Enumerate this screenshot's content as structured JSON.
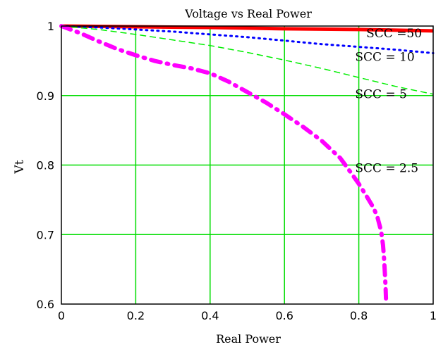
{
  "chart_data": {
    "type": "line",
    "title": "Voltage vs Real Power",
    "xlabel": "Real Power",
    "ylabel": "Vt",
    "xlim": [
      0,
      1
    ],
    "ylim": [
      0.6,
      1
    ],
    "x_ticks": [
      "0",
      "0.2",
      "0.4",
      "0.6",
      "0.8",
      "1"
    ],
    "y_ticks": [
      "0.6",
      "0.7",
      "0.8",
      "0.9",
      "1"
    ],
    "grid": true,
    "series": [
      {
        "name": "SCC =50",
        "color": "#ff0000",
        "style": "solid-thick",
        "points": [
          [
            0,
            1.0
          ],
          [
            0.2,
            0.999
          ],
          [
            0.4,
            0.998
          ],
          [
            0.6,
            0.996
          ],
          [
            0.8,
            0.995
          ],
          [
            1.0,
            0.993
          ]
        ]
      },
      {
        "name": "SCC = 10",
        "color": "#0000ff",
        "style": "dotted",
        "points": [
          [
            0,
            1.0
          ],
          [
            0.1,
            0.998
          ],
          [
            0.2,
            0.995
          ],
          [
            0.3,
            0.992
          ],
          [
            0.4,
            0.988
          ],
          [
            0.5,
            0.984
          ],
          [
            0.6,
            0.979
          ],
          [
            0.7,
            0.974
          ],
          [
            0.8,
            0.97
          ],
          [
            0.9,
            0.966
          ],
          [
            1.0,
            0.961
          ]
        ]
      },
      {
        "name": "SCC = 5",
        "color": "#00ee00",
        "style": "dashed",
        "points": [
          [
            0,
            1.0
          ],
          [
            0.1,
            0.995
          ],
          [
            0.2,
            0.988
          ],
          [
            0.3,
            0.98
          ],
          [
            0.4,
            0.972
          ],
          [
            0.5,
            0.962
          ],
          [
            0.6,
            0.951
          ],
          [
            0.7,
            0.939
          ],
          [
            0.8,
            0.926
          ],
          [
            0.9,
            0.913
          ],
          [
            1.0,
            0.902
          ]
        ]
      },
      {
        "name": "SCC = 2.5",
        "color": "#ff00ff",
        "style": "dashdot-thick",
        "points": [
          [
            0,
            1.0
          ],
          [
            0.05,
            0.99
          ],
          [
            0.1,
            0.978
          ],
          [
            0.15,
            0.967
          ],
          [
            0.2,
            0.958
          ],
          [
            0.25,
            0.95
          ],
          [
            0.3,
            0.944
          ],
          [
            0.35,
            0.939
          ],
          [
            0.4,
            0.932
          ],
          [
            0.45,
            0.92
          ],
          [
            0.5,
            0.905
          ],
          [
            0.55,
            0.89
          ],
          [
            0.6,
            0.873
          ],
          [
            0.65,
            0.855
          ],
          [
            0.7,
            0.835
          ],
          [
            0.75,
            0.81
          ],
          [
            0.78,
            0.788
          ],
          [
            0.8,
            0.773
          ],
          [
            0.82,
            0.756
          ],
          [
            0.84,
            0.738
          ],
          [
            0.85,
            0.725
          ],
          [
            0.86,
            0.705
          ],
          [
            0.865,
            0.685
          ],
          [
            0.868,
            0.665
          ],
          [
            0.87,
            0.645
          ],
          [
            0.872,
            0.625
          ],
          [
            0.873,
            0.608
          ]
        ]
      }
    ],
    "annotations": [
      {
        "text": "SCC =50",
        "x": 0.82,
        "y": 0.984
      },
      {
        "text": "SCC = 10",
        "x": 0.79,
        "y": 0.95
      },
      {
        "text": "SCC = 5",
        "x": 0.79,
        "y": 0.896
      },
      {
        "text": "SCC = 2.5",
        "x": 0.79,
        "y": 0.79
      }
    ]
  }
}
